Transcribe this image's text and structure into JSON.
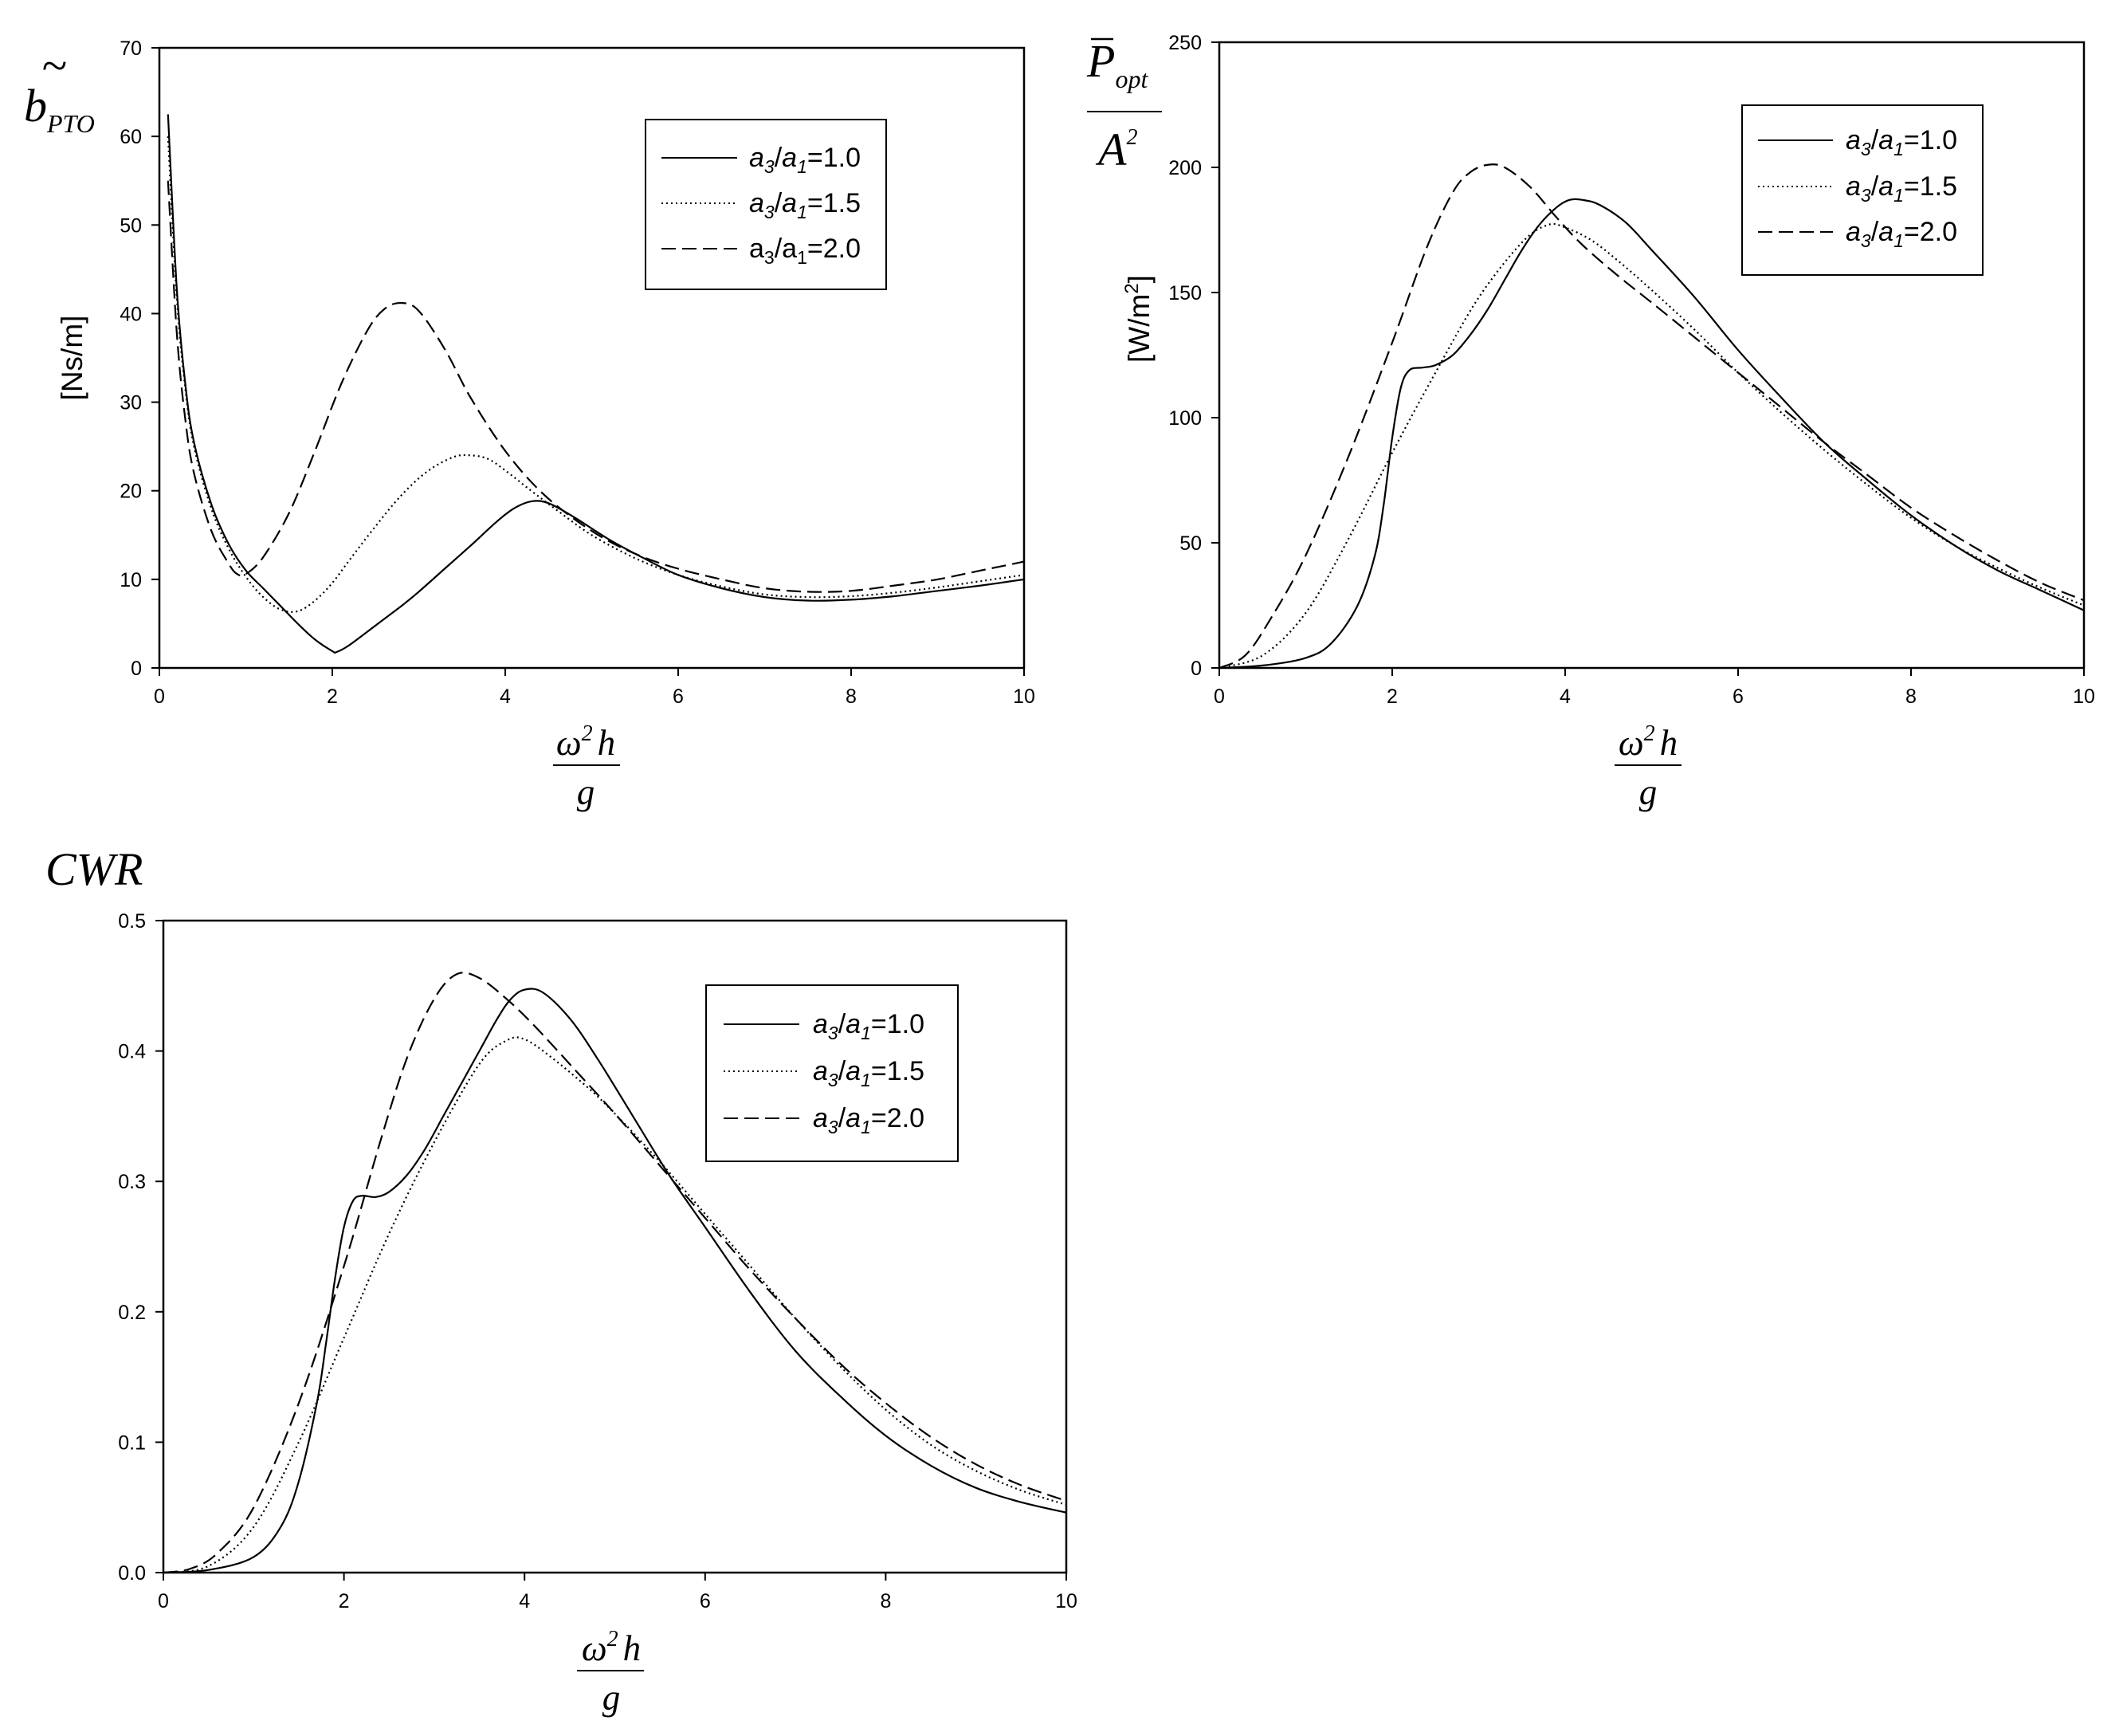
{
  "legend_labels": [
    {
      "a": "a",
      "s1": "3",
      "slash": "/",
      "b": "a",
      "s2": "1",
      "val": "=1.0"
    },
    {
      "a": "a",
      "s1": "3",
      "slash": "/",
      "b": "a",
      "s2": "1",
      "val": "=1.5"
    },
    {
      "a": "a",
      "s1": "3",
      "slash": "/",
      "b": "a",
      "s2": "1",
      "val": "=2.0"
    }
  ],
  "xaxis_label": {
    "omega": "ω",
    "sq": "2",
    "h": "h",
    "g": "g"
  },
  "panels": {
    "bpto": {
      "ylabel_b": "b",
      "ylabel_sub": "PTO",
      "tilde": "~",
      "unit": "[Ns/m]"
    },
    "popt": {
      "ylabel_p": "P",
      "ylabel_sub": "opt",
      "ylabel_A": "A",
      "ylabel_sq": "2",
      "unit_main": "[W/m",
      "unit_sup": "2",
      "unit_end": "]"
    },
    "cwr": {
      "ylabel": "CWR"
    }
  },
  "chart_data": [
    {
      "id": "bpto",
      "type": "line",
      "xlim": [
        0,
        10
      ],
      "ylim": [
        0,
        70
      ],
      "xticks": [
        0,
        2,
        4,
        6,
        8,
        10
      ],
      "yticks": [
        0,
        10,
        20,
        30,
        40,
        50,
        60,
        70
      ],
      "tick_decimals": 0,
      "legend_position": "top-right",
      "series": [
        {
          "name": "a3/a1=1.0",
          "style": "solid",
          "x": [
            0.1,
            0.2,
            0.3,
            0.4,
            0.6,
            0.8,
            1.0,
            1.2,
            1.4,
            1.6,
            1.8,
            2.0,
            2.05,
            2.2,
            2.5,
            2.8,
            3.0,
            3.3,
            3.6,
            3.9,
            4.1,
            4.3,
            4.5,
            4.8,
            5.2,
            5.6,
            6.0,
            6.5,
            7.0,
            7.5,
            8.0,
            8.5,
            9.0,
            9.5,
            10.0
          ],
          "y": [
            62.5,
            43.0,
            32.0,
            25.5,
            18.5,
            14.0,
            11.0,
            9.0,
            7.0,
            5.0,
            3.2,
            1.9,
            1.8,
            2.6,
            4.8,
            7.0,
            8.6,
            11.2,
            13.8,
            16.5,
            18.0,
            18.8,
            18.6,
            17.0,
            14.5,
            12.4,
            10.5,
            9.0,
            8.0,
            7.6,
            7.7,
            8.1,
            8.7,
            9.3,
            10.0
          ]
        },
        {
          "name": "a3/a1=1.5",
          "style": "dotted",
          "x": [
            0.1,
            0.2,
            0.3,
            0.4,
            0.6,
            0.8,
            1.0,
            1.2,
            1.4,
            1.6,
            1.8,
            2.0,
            2.2,
            2.5,
            2.8,
            3.1,
            3.4,
            3.6,
            3.8,
            4.0,
            4.3,
            4.6,
            5.0,
            5.5,
            6.0,
            6.5,
            7.0,
            7.5,
            8.0,
            8.5,
            9.0,
            9.5,
            10.0
          ],
          "y": [
            60.0,
            42.0,
            31.5,
            25.0,
            18.0,
            13.5,
            10.3,
            8.0,
            6.6,
            6.4,
            7.6,
            9.6,
            12.2,
            16.0,
            19.5,
            22.2,
            23.8,
            24.0,
            23.6,
            22.3,
            20.0,
            17.8,
            15.0,
            12.4,
            10.5,
            9.2,
            8.3,
            8.0,
            8.1,
            8.5,
            9.1,
            9.8,
            10.5
          ]
        },
        {
          "name": "a3/a1=2.0",
          "style": "dashed",
          "x": [
            0.1,
            0.2,
            0.3,
            0.4,
            0.6,
            0.8,
            0.9,
            1.0,
            1.2,
            1.5,
            1.8,
            2.1,
            2.4,
            2.6,
            2.8,
            3.0,
            3.3,
            3.6,
            4.0,
            4.4,
            4.8,
            5.2,
            5.6,
            6.0,
            6.5,
            7.0,
            7.5,
            8.0,
            8.5,
            9.0,
            9.5,
            10.0
          ],
          "y": [
            55.0,
            38.0,
            28.0,
            22.0,
            15.5,
            11.8,
            10.6,
            10.6,
            12.5,
            17.5,
            24.5,
            32.0,
            38.0,
            40.5,
            41.2,
            40.3,
            36.0,
            30.5,
            24.5,
            20.0,
            16.8,
            14.3,
            12.5,
            11.2,
            10.0,
            9.0,
            8.6,
            8.7,
            9.3,
            10.0,
            11.0,
            12.0
          ]
        }
      ]
    },
    {
      "id": "popt",
      "type": "line",
      "xlim": [
        0,
        10
      ],
      "ylim": [
        0,
        250
      ],
      "xticks": [
        0,
        2,
        4,
        6,
        8,
        10
      ],
      "yticks": [
        0,
        50,
        100,
        150,
        200,
        250
      ],
      "tick_decimals": 0,
      "legend_position": "top-right",
      "series": [
        {
          "name": "a3/a1=1.0",
          "style": "solid",
          "x": [
            0.0,
            0.5,
            1.0,
            1.3,
            1.6,
            1.8,
            1.9,
            2.0,
            2.1,
            2.2,
            2.35,
            2.5,
            2.7,
            2.9,
            3.1,
            3.3,
            3.5,
            3.7,
            3.9,
            4.05,
            4.2,
            4.4,
            4.7,
            5.0,
            5.5,
            6.0,
            6.5,
            7.0,
            7.5,
            8.0,
            8.5,
            9.0,
            9.5,
            10.0
          ],
          "y": [
            0,
            1,
            4,
            10,
            25,
            45,
            65,
            92,
            112,
            119,
            120,
            121,
            125,
            133,
            143,
            155,
            167,
            177,
            184,
            187,
            187,
            185,
            178,
            167,
            148,
            127,
            108,
            90,
            75,
            61,
            49,
            39,
            31,
            23
          ]
        },
        {
          "name": "a3/a1=1.5",
          "style": "dotted",
          "x": [
            0.0,
            0.5,
            1.0,
            1.5,
            2.0,
            2.5,
            3.0,
            3.5,
            3.8,
            4.0,
            4.3,
            4.6,
            5.0,
            5.5,
            6.0,
            6.5,
            7.0,
            7.5,
            8.0,
            8.5,
            9.0,
            9.5,
            10.0
          ],
          "y": [
            0,
            5,
            22,
            52,
            86,
            118,
            148,
            170,
            177,
            176,
            171,
            163,
            151,
            135,
            118,
            102,
            87,
            73,
            60,
            49,
            40,
            32,
            25
          ]
        },
        {
          "name": "a3/a1=2.0",
          "style": "dashed",
          "x": [
            0.0,
            0.3,
            0.6,
            1.0,
            1.5,
            2.0,
            2.4,
            2.7,
            2.9,
            3.1,
            3.3,
            3.6,
            3.9,
            4.2,
            4.6,
            5.0,
            5.5,
            6.0,
            6.5,
            7.0,
            7.5,
            8.0,
            8.5,
            9.0,
            9.5,
            10.0
          ],
          "y": [
            0,
            5,
            20,
            45,
            85,
            130,
            168,
            190,
            198,
            201,
            200,
            192,
            180,
            169,
            157,
            146,
            132,
            118,
            104,
            90,
            77,
            64,
            53,
            43,
            34,
            27
          ]
        }
      ]
    },
    {
      "id": "cwr",
      "type": "line",
      "xlim": [
        0,
        10
      ],
      "ylim": [
        0,
        0.5
      ],
      "xticks": [
        0,
        2,
        4,
        6,
        8,
        10
      ],
      "yticks": [
        0.0,
        0.1,
        0.2,
        0.3,
        0.4,
        0.5
      ],
      "tick_decimals": 1,
      "legend_position": "top-right",
      "series": [
        {
          "name": "a3/a1=1.0",
          "style": "solid",
          "x": [
            0.0,
            0.5,
            1.0,
            1.3,
            1.5,
            1.7,
            1.8,
            1.9,
            2.0,
            2.1,
            2.2,
            2.35,
            2.5,
            2.7,
            2.9,
            3.1,
            3.3,
            3.5,
            3.7,
            3.85,
            4.0,
            4.2,
            4.5,
            4.8,
            5.2,
            5.6,
            6.0,
            6.5,
            7.0,
            7.5,
            8.0,
            8.5,
            9.0,
            9.5,
            10.0
          ],
          "y": [
            0,
            0.002,
            0.012,
            0.035,
            0.07,
            0.13,
            0.175,
            0.225,
            0.265,
            0.285,
            0.289,
            0.288,
            0.292,
            0.305,
            0.325,
            0.35,
            0.375,
            0.4,
            0.425,
            0.44,
            0.447,
            0.445,
            0.425,
            0.395,
            0.35,
            0.305,
            0.265,
            0.215,
            0.17,
            0.135,
            0.105,
            0.082,
            0.065,
            0.054,
            0.046
          ]
        },
        {
          "name": "a3/a1=1.5",
          "style": "dotted",
          "x": [
            0.0,
            0.5,
            1.0,
            1.5,
            2.0,
            2.5,
            3.0,
            3.5,
            3.8,
            4.0,
            4.3,
            4.7,
            5.0,
            5.5,
            6.0,
            6.5,
            7.0,
            7.5,
            8.0,
            8.5,
            9.0,
            9.5,
            10.0
          ],
          "y": [
            0,
            0.005,
            0.035,
            0.1,
            0.18,
            0.26,
            0.33,
            0.39,
            0.408,
            0.409,
            0.395,
            0.372,
            0.352,
            0.315,
            0.275,
            0.235,
            0.195,
            0.158,
            0.125,
            0.098,
            0.078,
            0.063,
            0.052
          ]
        },
        {
          "name": "a3/a1=2.0",
          "style": "dashed",
          "x": [
            0.0,
            0.3,
            0.6,
            1.0,
            1.5,
            2.0,
            2.4,
            2.7,
            3.0,
            3.25,
            3.5,
            3.8,
            4.1,
            4.5,
            5.0,
            5.5,
            6.0,
            6.5,
            7.0,
            7.5,
            8.0,
            8.5,
            9.0,
            9.5,
            10.0
          ],
          "y": [
            0,
            0.003,
            0.015,
            0.05,
            0.13,
            0.235,
            0.33,
            0.395,
            0.44,
            0.459,
            0.456,
            0.44,
            0.42,
            0.39,
            0.352,
            0.312,
            0.272,
            0.232,
            0.195,
            0.16,
            0.13,
            0.104,
            0.083,
            0.067,
            0.055
          ]
        }
      ]
    }
  ]
}
